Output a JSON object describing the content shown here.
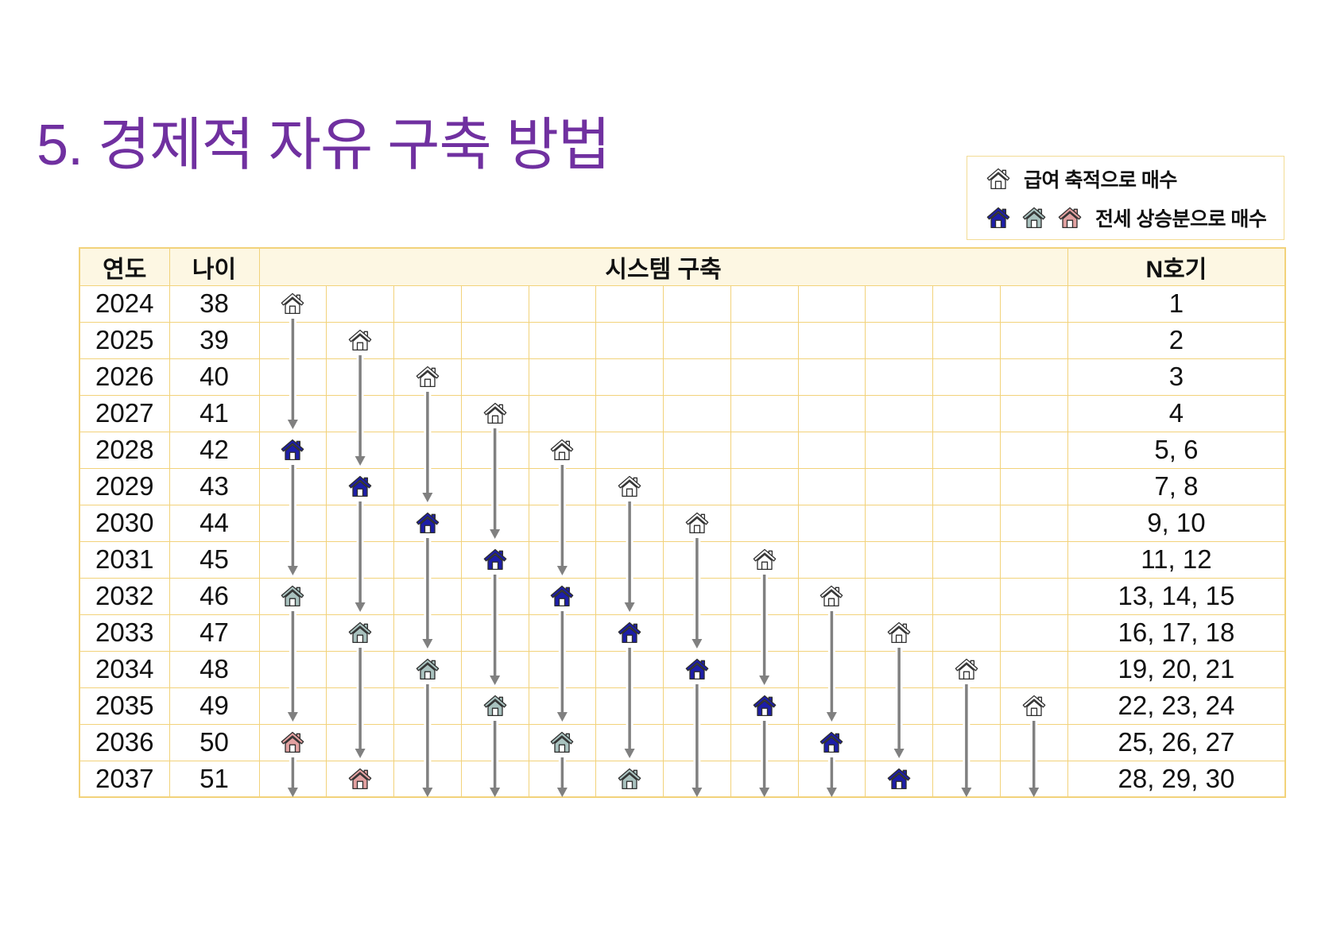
{
  "slide": {
    "title": "5. 경제적 자유 구축 방법"
  },
  "colors": {
    "title": "#7030a0",
    "text": "#111111",
    "grid": "#f2d27a",
    "header_bg": "#fdf7e3",
    "legend_border": "#f3dc95",
    "arrow": "#808080",
    "icon_outline": "#2e2e2e"
  },
  "icon_types": {
    "house-white-icon": {
      "fill": "#ffffff",
      "door": "#ffffff"
    },
    "house-blue-icon": {
      "fill": "#1d1ea8",
      "door": "#ffffff"
    },
    "house-gray-icon": {
      "fill": "#a9c2bf",
      "door": "#ffffff"
    },
    "house-pink-icon": {
      "fill": "#e2a1a1",
      "door": "#ffffff"
    }
  },
  "legend": {
    "items": [
      {
        "icons": [
          "house-white-icon"
        ],
        "label": "급여 축적으로 매수"
      },
      {
        "icons": [
          "house-blue-icon",
          "house-gray-icon",
          "house-pink-icon"
        ],
        "label": "전세 상승분으로 매수"
      }
    ]
  },
  "table": {
    "headers": {
      "year": "연도",
      "age": "나이",
      "system": "시스템 구축",
      "units": "N호기"
    },
    "rows": [
      {
        "year": "2024",
        "age": "38",
        "units": "1",
        "system": [
          "house-white-icon",
          null,
          null,
          null,
          null,
          null,
          null,
          null,
          null,
          null,
          null,
          null
        ]
      },
      {
        "year": "2025",
        "age": "39",
        "units": "2",
        "system": [
          null,
          "house-white-icon",
          null,
          null,
          null,
          null,
          null,
          null,
          null,
          null,
          null,
          null
        ]
      },
      {
        "year": "2026",
        "age": "40",
        "units": "3",
        "system": [
          null,
          null,
          "house-white-icon",
          null,
          null,
          null,
          null,
          null,
          null,
          null,
          null,
          null
        ]
      },
      {
        "year": "2027",
        "age": "41",
        "units": "4",
        "system": [
          null,
          null,
          null,
          "house-white-icon",
          null,
          null,
          null,
          null,
          null,
          null,
          null,
          null
        ]
      },
      {
        "year": "2028",
        "age": "42",
        "units": "5, 6",
        "system": [
          "house-blue-icon",
          null,
          null,
          null,
          "house-white-icon",
          null,
          null,
          null,
          null,
          null,
          null,
          null
        ]
      },
      {
        "year": "2029",
        "age": "43",
        "units": "7, 8",
        "system": [
          null,
          "house-blue-icon",
          null,
          null,
          null,
          "house-white-icon",
          null,
          null,
          null,
          null,
          null,
          null
        ]
      },
      {
        "year": "2030",
        "age": "44",
        "units": "9, 10",
        "system": [
          null,
          null,
          "house-blue-icon",
          null,
          null,
          null,
          "house-white-icon",
          null,
          null,
          null,
          null,
          null
        ]
      },
      {
        "year": "2031",
        "age": "45",
        "units": "11, 12",
        "system": [
          null,
          null,
          null,
          "house-blue-icon",
          null,
          null,
          null,
          "house-white-icon",
          null,
          null,
          null,
          null
        ]
      },
      {
        "year": "2032",
        "age": "46",
        "units": "13, 14, 15",
        "system": [
          "house-gray-icon",
          null,
          null,
          null,
          "house-blue-icon",
          null,
          null,
          null,
          "house-white-icon",
          null,
          null,
          null
        ]
      },
      {
        "year": "2033",
        "age": "47",
        "units": "16, 17, 18",
        "system": [
          null,
          "house-gray-icon",
          null,
          null,
          null,
          "house-blue-icon",
          null,
          null,
          null,
          "house-white-icon",
          null,
          null
        ]
      },
      {
        "year": "2034",
        "age": "48",
        "units": "19, 20, 21",
        "system": [
          null,
          null,
          "house-gray-icon",
          null,
          null,
          null,
          "house-blue-icon",
          null,
          null,
          null,
          "house-white-icon",
          null
        ]
      },
      {
        "year": "2035",
        "age": "49",
        "units": "22, 23, 24",
        "system": [
          null,
          null,
          null,
          "house-gray-icon",
          null,
          null,
          null,
          "house-blue-icon",
          null,
          null,
          null,
          "house-white-icon"
        ]
      },
      {
        "year": "2036",
        "age": "50",
        "units": "25, 26, 27",
        "system": [
          "house-pink-icon",
          null,
          null,
          null,
          "house-gray-icon",
          null,
          null,
          null,
          "house-blue-icon",
          null,
          null,
          null
        ]
      },
      {
        "year": "2037",
        "age": "51",
        "units": "28, 29, 30",
        "system": [
          null,
          "house-pink-icon",
          null,
          null,
          null,
          "house-gray-icon",
          null,
          null,
          null,
          "house-blue-icon",
          null,
          null
        ]
      }
    ]
  }
}
